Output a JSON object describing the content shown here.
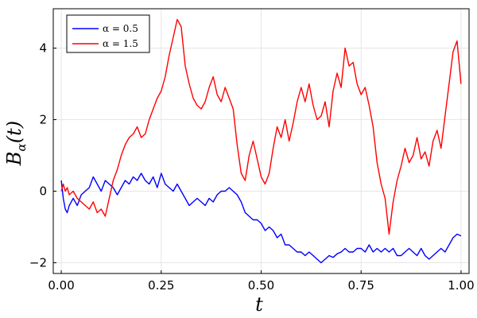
{
  "chart_data": {
    "type": "line",
    "xlabel": "t",
    "ylabel": "B_α(t)",
    "ylabel_main": "B",
    "ylabel_sub": "α",
    "ylabel_rest": "(t)",
    "xlim": [
      -0.02,
      1.02
    ],
    "ylim": [
      -2.3,
      5.1
    ],
    "xticks": [
      0.0,
      0.25,
      0.5,
      0.75,
      1.0
    ],
    "xtick_labels": [
      "0.00",
      "0.25",
      "0.50",
      "0.75",
      "1.00"
    ],
    "yticks": [
      -2,
      0,
      2,
      4
    ],
    "ytick_labels": [
      "−2",
      "0",
      "2",
      "4"
    ],
    "grid": true,
    "legend_position": "top-left",
    "series": [
      {
        "name": "α = 0.5",
        "color": "#0000ff",
        "x": [
          0.0,
          0.005,
          0.01,
          0.015,
          0.02,
          0.03,
          0.04,
          0.05,
          0.06,
          0.07,
          0.08,
          0.09,
          0.1,
          0.11,
          0.12,
          0.13,
          0.14,
          0.15,
          0.16,
          0.17,
          0.18,
          0.19,
          0.2,
          0.21,
          0.22,
          0.23,
          0.24,
          0.25,
          0.26,
          0.27,
          0.28,
          0.29,
          0.3,
          0.31,
          0.32,
          0.33,
          0.34,
          0.35,
          0.36,
          0.37,
          0.38,
          0.39,
          0.4,
          0.41,
          0.42,
          0.43,
          0.44,
          0.45,
          0.46,
          0.47,
          0.48,
          0.49,
          0.5,
          0.51,
          0.52,
          0.53,
          0.54,
          0.55,
          0.56,
          0.57,
          0.58,
          0.59,
          0.6,
          0.61,
          0.62,
          0.63,
          0.64,
          0.65,
          0.66,
          0.67,
          0.68,
          0.69,
          0.7,
          0.71,
          0.72,
          0.73,
          0.74,
          0.75,
          0.76,
          0.77,
          0.78,
          0.79,
          0.8,
          0.81,
          0.82,
          0.83,
          0.84,
          0.85,
          0.86,
          0.87,
          0.88,
          0.89,
          0.9,
          0.91,
          0.92,
          0.93,
          0.94,
          0.95,
          0.96,
          0.97,
          0.98,
          0.99,
          1.0
        ],
        "y": [
          0.3,
          -0.2,
          -0.5,
          -0.6,
          -0.4,
          -0.2,
          -0.4,
          -0.1,
          0.0,
          0.1,
          0.4,
          0.2,
          0.0,
          0.3,
          0.2,
          0.1,
          -0.1,
          0.1,
          0.3,
          0.2,
          0.4,
          0.3,
          0.5,
          0.3,
          0.2,
          0.4,
          0.1,
          0.5,
          0.2,
          0.1,
          0.0,
          0.2,
          0.0,
          -0.2,
          -0.4,
          -0.3,
          -0.2,
          -0.3,
          -0.4,
          -0.2,
          -0.3,
          -0.1,
          0.0,
          0.0,
          0.1,
          0.0,
          -0.1,
          -0.3,
          -0.6,
          -0.7,
          -0.8,
          -0.8,
          -0.9,
          -1.1,
          -1.0,
          -1.1,
          -1.3,
          -1.2,
          -1.5,
          -1.5,
          -1.6,
          -1.7,
          -1.7,
          -1.8,
          -1.7,
          -1.8,
          -1.9,
          -2.0,
          -1.9,
          -1.8,
          -1.85,
          -1.75,
          -1.7,
          -1.6,
          -1.7,
          -1.7,
          -1.6,
          -1.6,
          -1.7,
          -1.5,
          -1.7,
          -1.6,
          -1.7,
          -1.6,
          -1.7,
          -1.6,
          -1.8,
          -1.8,
          -1.7,
          -1.6,
          -1.7,
          -1.8,
          -1.6,
          -1.8,
          -1.9,
          -1.8,
          -1.7,
          -1.6,
          -1.7,
          -1.5,
          -1.3,
          -1.2,
          -1.25
        ]
      },
      {
        "name": "α = 1.5",
        "color": "#ff0000",
        "x": [
          0.0,
          0.005,
          0.01,
          0.015,
          0.02,
          0.03,
          0.04,
          0.05,
          0.06,
          0.07,
          0.08,
          0.09,
          0.1,
          0.11,
          0.12,
          0.13,
          0.14,
          0.15,
          0.16,
          0.17,
          0.18,
          0.19,
          0.2,
          0.21,
          0.22,
          0.23,
          0.24,
          0.25,
          0.26,
          0.27,
          0.28,
          0.29,
          0.3,
          0.31,
          0.32,
          0.33,
          0.34,
          0.35,
          0.36,
          0.37,
          0.38,
          0.39,
          0.4,
          0.41,
          0.42,
          0.43,
          0.44,
          0.45,
          0.46,
          0.47,
          0.48,
          0.49,
          0.5,
          0.51,
          0.52,
          0.53,
          0.54,
          0.55,
          0.56,
          0.57,
          0.58,
          0.59,
          0.6,
          0.61,
          0.62,
          0.63,
          0.64,
          0.65,
          0.66,
          0.67,
          0.68,
          0.69,
          0.7,
          0.71,
          0.72,
          0.73,
          0.74,
          0.75,
          0.76,
          0.77,
          0.78,
          0.79,
          0.8,
          0.81,
          0.82,
          0.83,
          0.84,
          0.85,
          0.86,
          0.87,
          0.88,
          0.89,
          0.9,
          0.91,
          0.92,
          0.93,
          0.94,
          0.95,
          0.96,
          0.97,
          0.98,
          0.99,
          1.0
        ],
        "y": [
          0.0,
          0.2,
          0.0,
          0.1,
          -0.1,
          0.0,
          -0.2,
          -0.3,
          -0.4,
          -0.5,
          -0.3,
          -0.6,
          -0.5,
          -0.7,
          -0.2,
          0.3,
          0.6,
          1.0,
          1.3,
          1.5,
          1.6,
          1.8,
          1.5,
          1.6,
          2.0,
          2.3,
          2.6,
          2.8,
          3.2,
          3.8,
          4.3,
          4.8,
          4.6,
          3.5,
          3.0,
          2.6,
          2.4,
          2.3,
          2.5,
          2.9,
          3.2,
          2.7,
          2.5,
          2.9,
          2.6,
          2.3,
          1.3,
          0.5,
          0.3,
          1.0,
          1.4,
          0.9,
          0.4,
          0.2,
          0.5,
          1.2,
          1.8,
          1.5,
          2.0,
          1.4,
          1.9,
          2.5,
          2.9,
          2.5,
          3.0,
          2.4,
          2.0,
          2.1,
          2.5,
          1.8,
          2.8,
          3.3,
          2.9,
          4.0,
          3.5,
          3.6,
          3.0,
          2.7,
          2.9,
          2.4,
          1.8,
          0.8,
          0.2,
          -0.2,
          -1.2,
          -0.3,
          0.3,
          0.7,
          1.2,
          0.8,
          1.0,
          1.5,
          0.9,
          1.1,
          0.7,
          1.4,
          1.7,
          1.2,
          2.1,
          3.0,
          3.9,
          4.2,
          3.0
        ]
      }
    ]
  }
}
